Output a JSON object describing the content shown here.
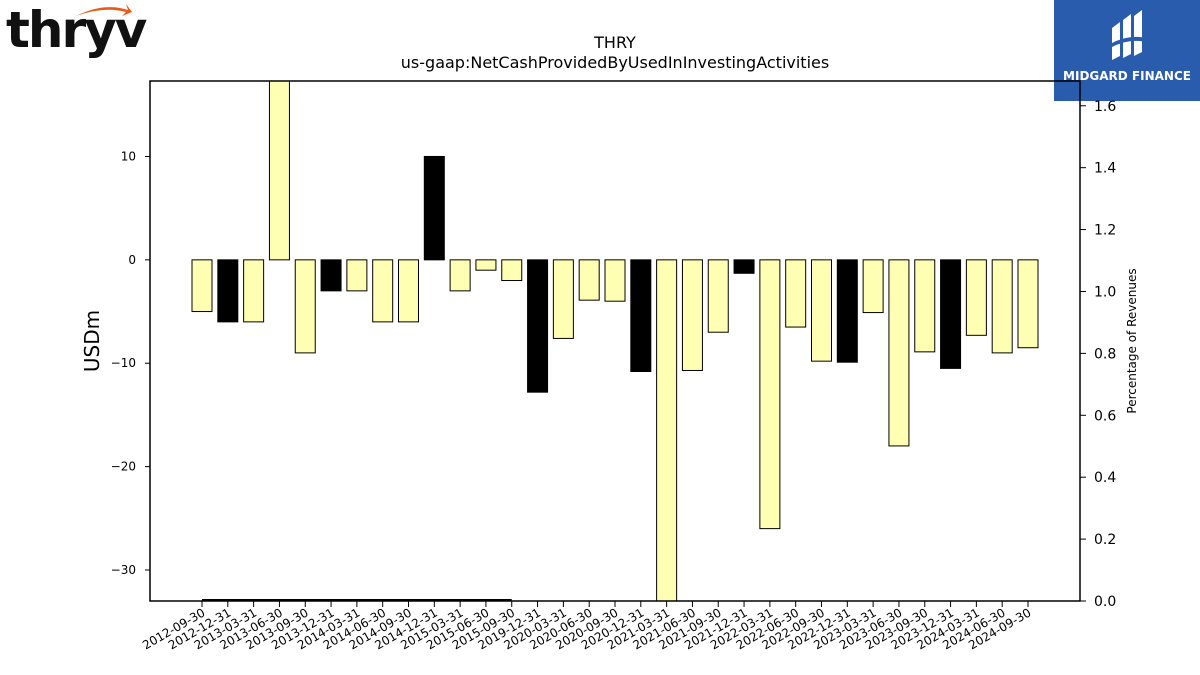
{
  "chart_data": {
    "type": "bar",
    "title": "THRY",
    "subtitle": "us-gaap:NetCashProvidedByUsedInInvestingActivities",
    "ylabel": "USDm",
    "y2label": "Percentage of Revenues",
    "ylim": [
      -33,
      17.3
    ],
    "y2lim": [
      0.0,
      1.68
    ],
    "yticks": [
      10,
      0,
      -10,
      -20,
      -30
    ],
    "y2ticks": [
      "1.6",
      "1.4",
      "1.2",
      "1.0",
      "0.8",
      "0.6",
      "0.4",
      "0.2",
      "0.0"
    ],
    "y2tick_values": [
      1.6,
      1.4,
      1.2,
      1.0,
      0.8,
      0.6,
      0.4,
      0.2,
      0.0
    ],
    "categories": [
      "2012-09-30",
      "2012-12-31",
      "2013-03-31",
      "2013-06-30",
      "2013-09-30",
      "2013-12-31",
      "2014-03-31",
      "2014-06-30",
      "2014-09-30",
      "2014-12-31",
      "2015-03-31",
      "2015-06-30",
      "2015-09-30",
      "2019-12-31",
      "2020-03-31",
      "2020-06-30",
      "2020-09-30",
      "2020-12-31",
      "2021-03-31",
      "2021-06-30",
      "2021-09-30",
      "2021-12-31",
      "2022-03-31",
      "2022-06-30",
      "2022-09-30",
      "2022-12-31",
      "2023-03-31",
      "2023-06-30",
      "2023-09-30",
      "2023-12-31",
      "2024-03-31",
      "2024-06-30",
      "2024-09-30"
    ],
    "values": [
      -5.0,
      -6.0,
      -6.0,
      17.3,
      -9.0,
      -3.0,
      -3.0,
      -6.0,
      -6.0,
      10.0,
      -3.0,
      -1.0,
      -2.0,
      -12.8,
      -7.6,
      -3.9,
      -4.0,
      -10.8,
      -33.0,
      -10.7,
      -7.0,
      -1.3,
      -26.0,
      -6.5,
      -9.8,
      -9.9,
      -5.1,
      -18.0,
      -8.9,
      -10.5,
      -7.3,
      -9.0,
      -8.5
    ],
    "highlight": [
      false,
      true,
      false,
      false,
      false,
      true,
      false,
      false,
      false,
      true,
      false,
      false,
      false,
      true,
      false,
      false,
      false,
      true,
      false,
      false,
      false,
      true,
      false,
      false,
      false,
      true,
      false,
      false,
      false,
      true,
      false,
      false,
      false
    ],
    "secondary_line": {
      "from_index": 0,
      "to_index": 12,
      "value": 0.0
    },
    "grid": false,
    "legend": "none"
  },
  "colors": {
    "bar_fill": "#ffffb3",
    "bar_highlight": "#000000",
    "bar_edge": "#000000",
    "brand_right": "#2a5cad"
  },
  "logos": {
    "left": "thryv",
    "left_reg": "®",
    "right": "MIDGARD FINANCE"
  }
}
